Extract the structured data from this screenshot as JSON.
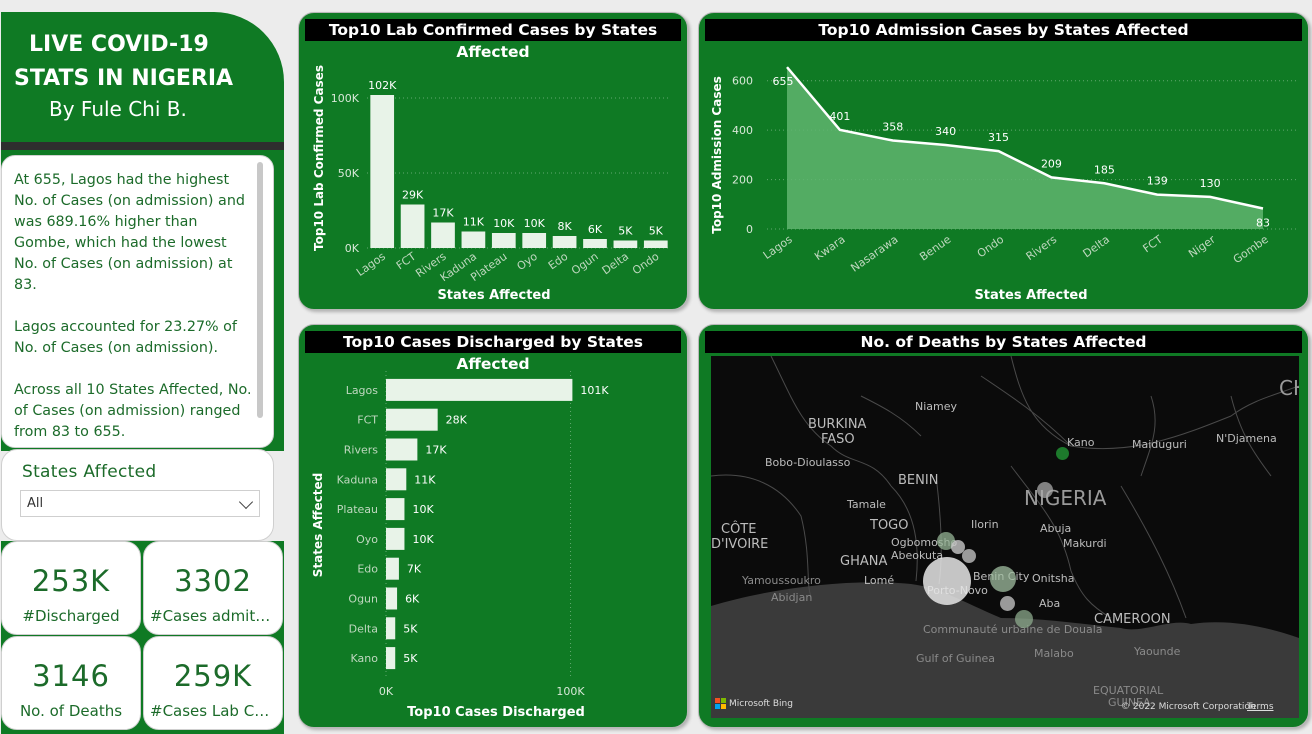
{
  "header": {
    "title_line1": "LIVE COVID-19",
    "title_line2": "STATS IN NIGERIA",
    "byline": "By Fule Chi B."
  },
  "narrative": {
    "p1": "At 655, Lagos had the highest No. of Cases (on admission) and was 689.16% higher than Gombe, which had the lowest No. of Cases (on admission) at 83.",
    "p2": "Lagos accounted for 23.27% of No. of Cases (on admission).",
    "p3": "Across all 10 States Affected, No. of Cases (on admission) ranged from 83 to 655."
  },
  "slicer": {
    "title": "States Affected",
    "selected": "All"
  },
  "kpis": [
    {
      "value": "253K",
      "label": "#Discharged"
    },
    {
      "value": "3302",
      "label": "#Cases admitted"
    },
    {
      "value": "3146",
      "label": "No. of Deaths"
    },
    {
      "value": "259K",
      "label": "#Cases Lab Confirmed"
    }
  ],
  "colors": {
    "panel_green": "#0f7a24",
    "bar_fill": "#e8f3e8",
    "area_fill": "#5fb56e",
    "title_bar": "#000000"
  },
  "chart_data": [
    {
      "type": "bar",
      "title": "Top10 Lab Confirmed Cases by States Affected",
      "xlabel": "States Affected",
      "ylabel": "Top10 Lab Confirmed Cases",
      "categories": [
        "Lagos",
        "FCT",
        "Rivers",
        "Kaduna",
        "Plateau",
        "Oyo",
        "Edo",
        "Ogun",
        "Delta",
        "Ondo"
      ],
      "values": [
        102000,
        29000,
        17000,
        11000,
        10000,
        10000,
        8000,
        6000,
        5000,
        5000
      ],
      "data_labels": [
        "102K",
        "29K",
        "17K",
        "11K",
        "10K",
        "10K",
        "8K",
        "6K",
        "5K",
        "5K"
      ],
      "yticks": [
        "0K",
        "50K",
        "100K"
      ],
      "ylim": [
        0,
        110000
      ]
    },
    {
      "type": "area",
      "title": "Top10 Admission Cases by States Affected",
      "xlabel": "States Affected",
      "ylabel": "Top10 Admission Cases",
      "categories": [
        "Lagos",
        "Kwara",
        "Nasarawa",
        "Benue",
        "Ondo",
        "Rivers",
        "Delta",
        "FCT",
        "Niger",
        "Gombe"
      ],
      "values": [
        655,
        401,
        358,
        340,
        315,
        209,
        185,
        139,
        130,
        83
      ],
      "yticks": [
        "0",
        "200",
        "400",
        "600"
      ],
      "ylim": [
        0,
        700
      ]
    },
    {
      "type": "bar",
      "orientation": "horizontal",
      "title": "Top10 Cases Discharged by States Affected",
      "xlabel": "Top10 Cases Discharged",
      "ylabel": "States Affected",
      "categories": [
        "Lagos",
        "FCT",
        "Rivers",
        "Kaduna",
        "Plateau",
        "Oyo",
        "Edo",
        "Ogun",
        "Delta",
        "Kano"
      ],
      "values": [
        101000,
        28000,
        17000,
        11000,
        10000,
        10000,
        7000,
        6000,
        5000,
        5000
      ],
      "data_labels": [
        "101K",
        "28K",
        "17K",
        "11K",
        "10K",
        "10K",
        "7K",
        "6K",
        "5K",
        "5K"
      ],
      "xticks": [
        "0K",
        "100K"
      ],
      "xlim": [
        0,
        110000
      ]
    }
  ],
  "map": {
    "title": "No. of Deaths by States Affected",
    "labels": [
      "BURKINA",
      "FASO",
      "Niamey",
      "Kano",
      "Maiduguri",
      "N'Djamena",
      "Bobo-Dioulasso",
      "BENIN",
      "NIGERIA",
      "Tamale",
      "TOGO",
      "Ilorin",
      "Abuja",
      "CÔTE",
      "D'IVOIRE",
      "GHANA",
      "Ogbomosho",
      "Abeokuta",
      "Makurdi",
      "Yamoussoukro",
      "Abidjan",
      "Lomé",
      "Porto-Novo",
      "Benin City",
      "Onitsha",
      "Aba",
      "CAMEROON",
      "Communauté urbaine de Douala",
      "Gulf of Guinea",
      "Malabo",
      "Yaounde",
      "EQUATORIAL",
      "GUINEA",
      "CHA"
    ],
    "bing_logo": "Microsoft Bing",
    "copyright": "© 2022 Microsoft Corporation",
    "terms": "Terms"
  }
}
